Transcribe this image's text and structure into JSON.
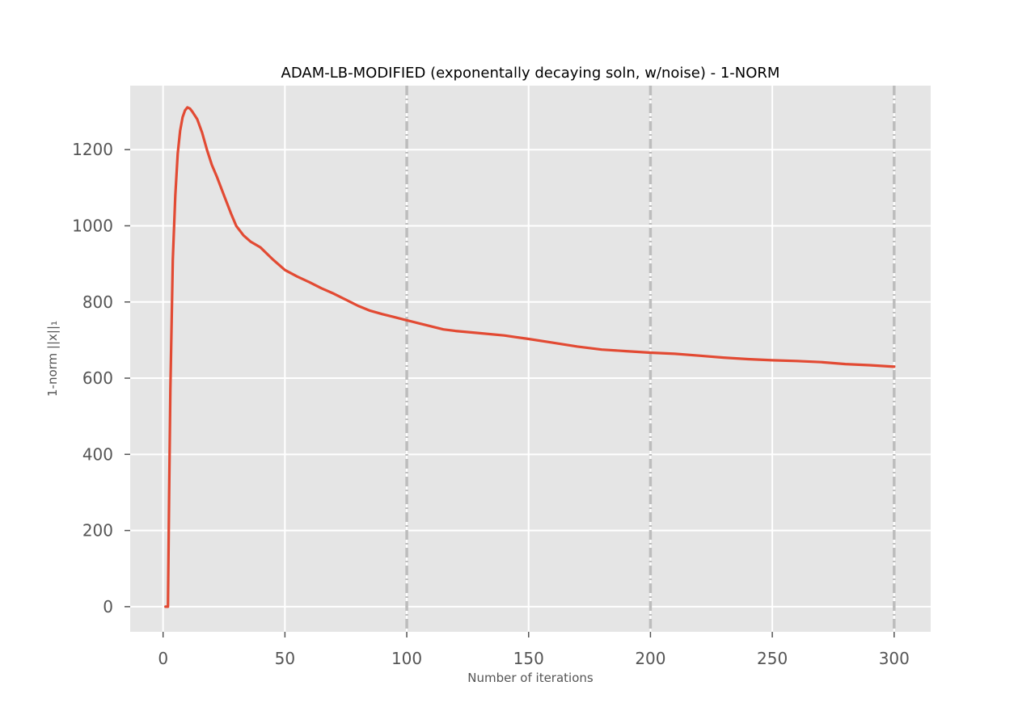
{
  "chart_data": {
    "type": "line",
    "title": "ADAM-LB-MODIFIED (exponentally decaying soln, w/noise) - 1-NORM",
    "xlabel": "Number of iterations",
    "ylabel": "1-norm ||x||₁",
    "xlim": [
      -13.5,
      315
    ],
    "ylim": [
      -66,
      1368
    ],
    "xticks": [
      0,
      50,
      100,
      150,
      200,
      250,
      300
    ],
    "yticks": [
      0,
      200,
      400,
      600,
      800,
      1000,
      1200
    ],
    "grid": true,
    "vlines": [
      100,
      200,
      300
    ],
    "colors": {
      "background": "#e5e5e5",
      "grid": "#ffffff",
      "series": "#e24a33",
      "vline": "#bdbdbd"
    },
    "series": [
      {
        "x": [
          1,
          2,
          2.5,
          3,
          4,
          5,
          6,
          7,
          8,
          9,
          10,
          11,
          12,
          14,
          16,
          18,
          20,
          22,
          25,
          28,
          30,
          33,
          36,
          40,
          45,
          50,
          55,
          60,
          65,
          70,
          75,
          80,
          85,
          90,
          95,
          100,
          105,
          110,
          115,
          120,
          130,
          140,
          150,
          160,
          170,
          180,
          190,
          200,
          210,
          220,
          230,
          240,
          250,
          260,
          270,
          280,
          290,
          300
        ],
        "y": [
          0,
          0,
          300,
          570,
          910,
          1080,
          1190,
          1250,
          1285,
          1303,
          1311,
          1308,
          1300,
          1280,
          1245,
          1200,
          1160,
          1130,
          1080,
          1030,
          1000,
          975,
          958,
          943,
          912,
          884,
          867,
          852,
          836,
          822,
          806,
          790,
          777,
          768,
          760,
          752,
          744,
          736,
          728,
          724,
          718,
          712,
          703,
          693,
          683,
          675,
          671,
          667,
          664,
          659,
          654,
          650,
          647,
          645,
          642,
          637,
          634,
          630
        ]
      }
    ]
  }
}
